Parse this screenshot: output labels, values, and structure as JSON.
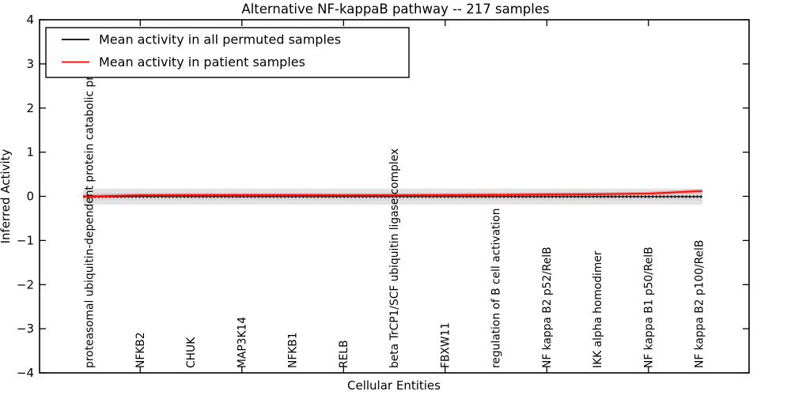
{
  "chart_data": {
    "type": "line",
    "title": "Alternative NF-kappaB pathway -- 217 samples",
    "xlabel": "Cellular Entities",
    "ylabel": "Inferred Activity",
    "ylim": [
      -4,
      4
    ],
    "ytick_labels": [
      "4",
      "3",
      "2",
      "1",
      "0",
      "−1",
      "−2",
      "−3",
      "−4"
    ],
    "grid": false,
    "legend_position": "upper left",
    "categories": [
      "proteasomal ubiquitin-dependent protein catabolic pr",
      "NFKB2",
      "CHUK",
      "MAP3K14",
      "NFKB1",
      "RELB",
      "beta TrCP1/SCF ubiquitin ligase complex",
      "FBXW11",
      "regulation of B cell activation",
      "NF kappa B2 p52/RelB",
      "IKK alpha homodimer",
      "NF kappa B1 p50/RelB",
      "NF kappa B2 p100/RelB"
    ],
    "series": [
      {
        "name": "Mean activity in all permuted samples",
        "color": "#000000",
        "values": [
          0,
          0,
          0,
          0,
          0,
          0,
          0,
          0,
          0,
          0,
          0,
          0,
          0
        ]
      },
      {
        "name": "Mean activity in patient samples",
        "color": "#ff0000",
        "values": [
          0.005,
          0.03,
          0.035,
          0.035,
          0.035,
          0.03,
          0.03,
          0.035,
          0.04,
          0.05,
          0.055,
          0.07,
          0.125
        ]
      }
    ],
    "band": {
      "color": "#e3e3e3",
      "half_width": 0.18,
      "description": "shaded deviation band around permuted-sample mean"
    },
    "legend": {
      "entries": [
        {
          "label": "Mean activity in all permuted samples",
          "color": "#000000"
        },
        {
          "label": "Mean activity in patient samples",
          "color": "#ff0000"
        }
      ]
    }
  }
}
